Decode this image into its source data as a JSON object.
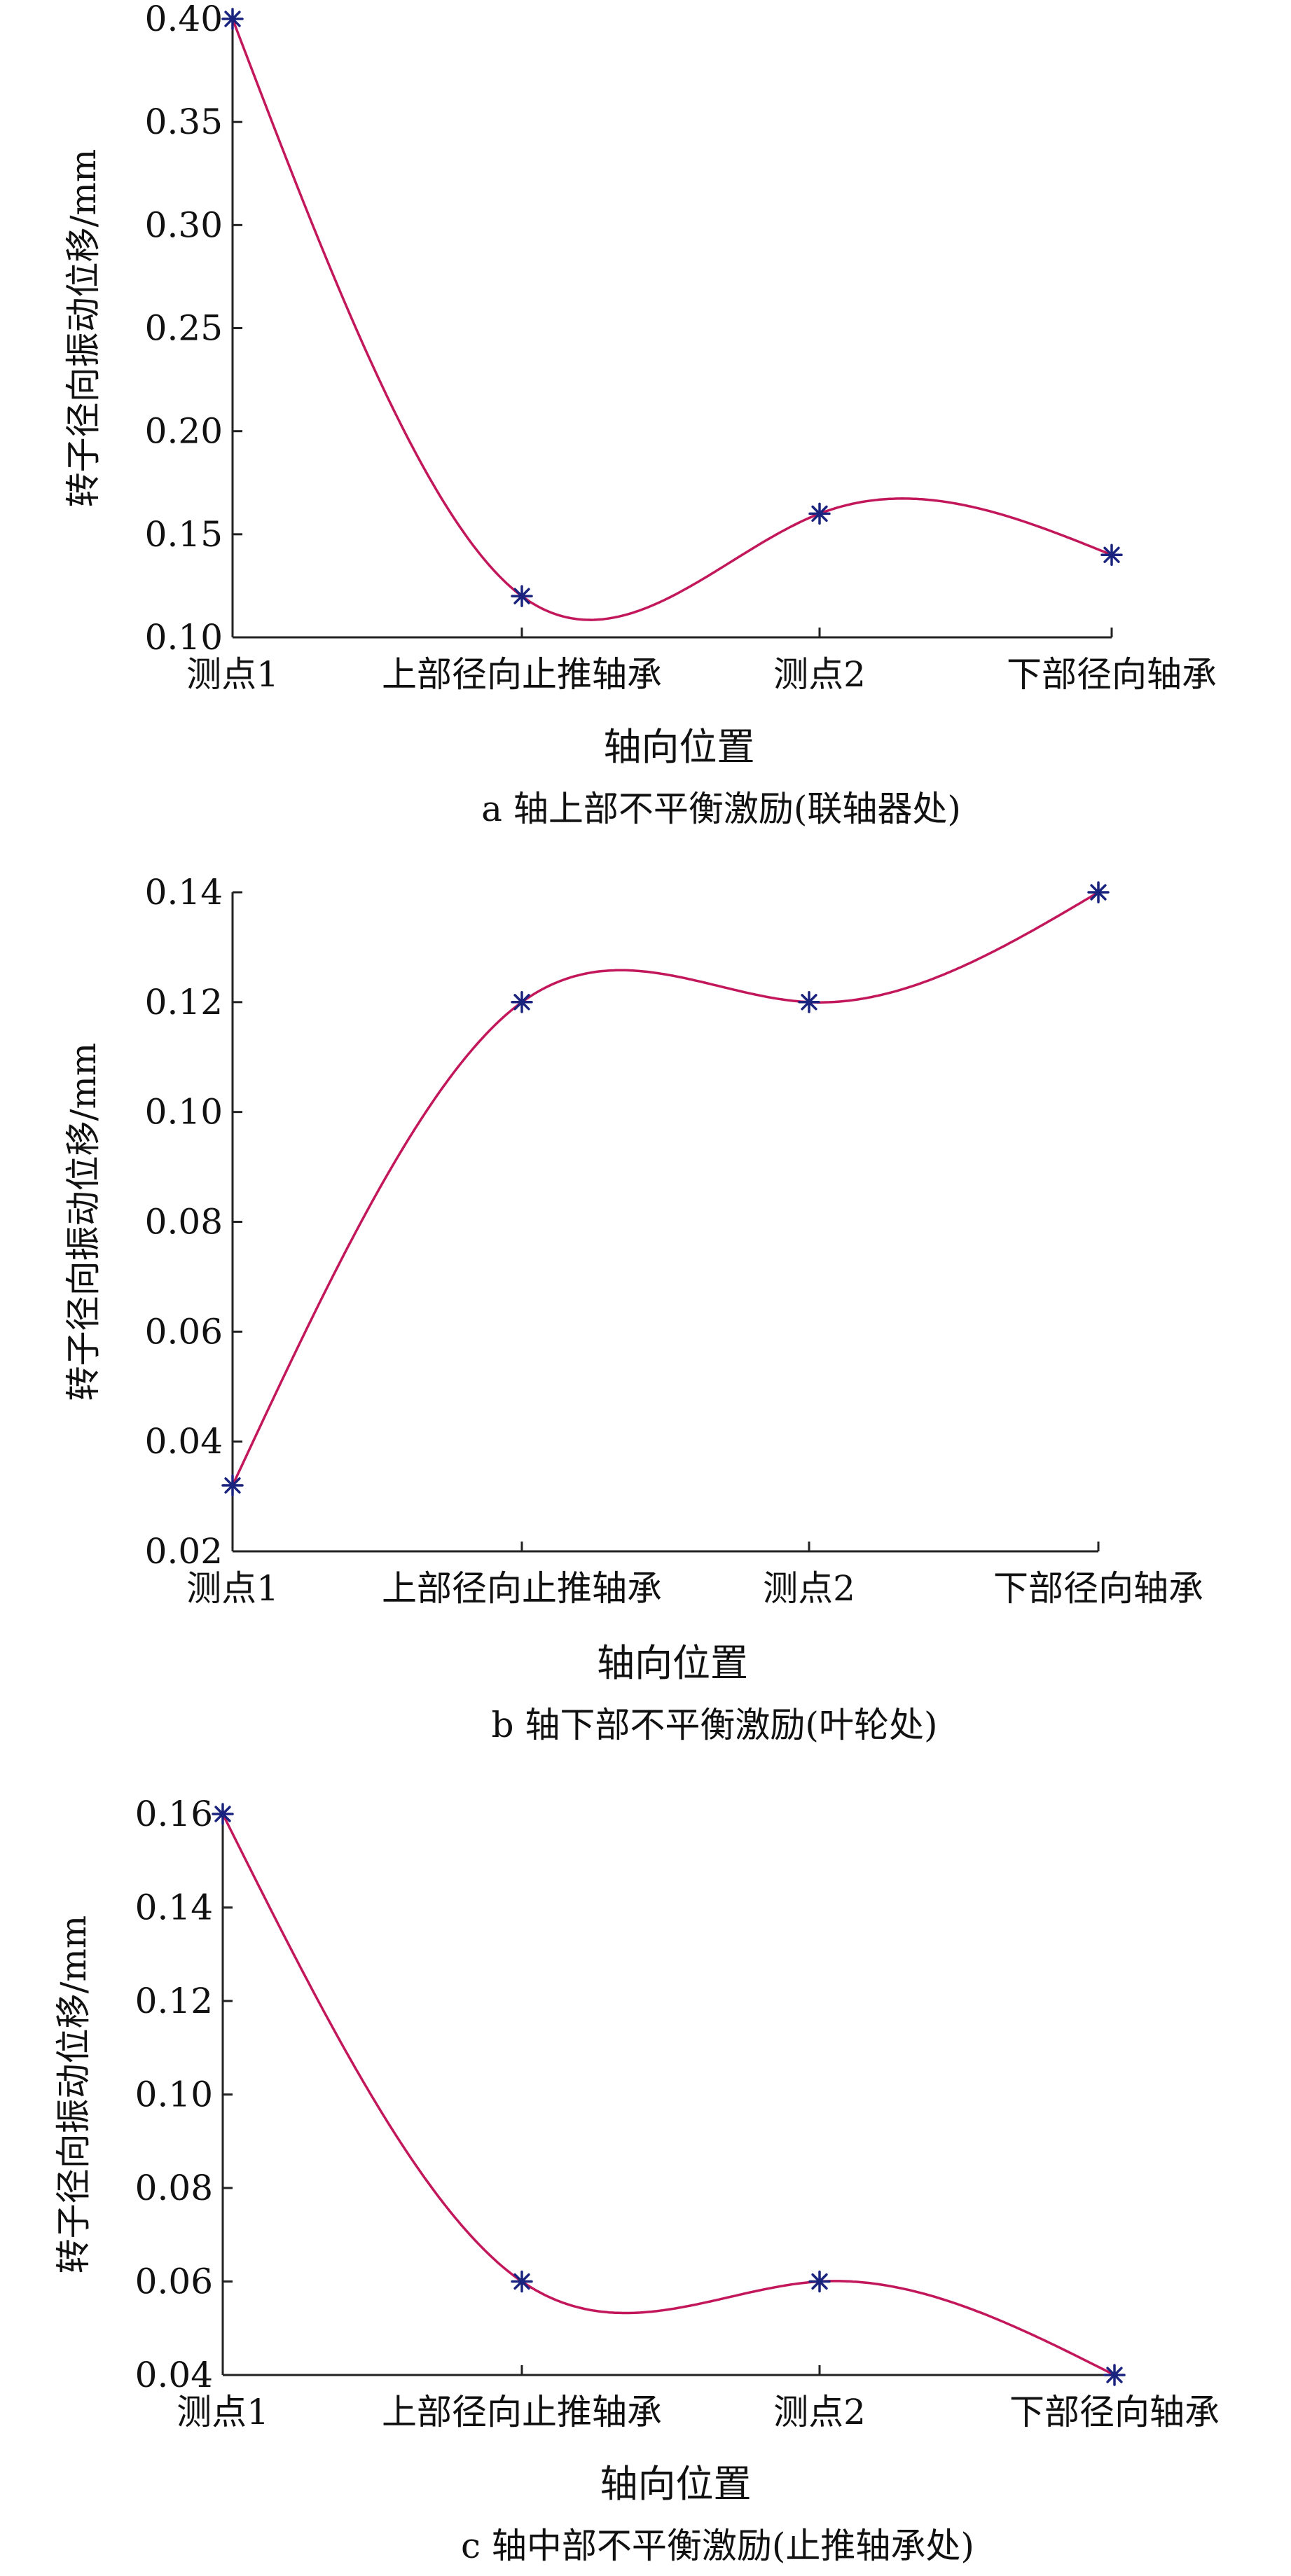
{
  "figure": {
    "panels": [
      {
        "caption": "a  轴上部不平衡激励(联轴器处)"
      },
      {
        "caption": "b  轴下部不平衡激励(叶轮处)"
      },
      {
        "caption": "c  轴中部不平衡激励(止推轴承处)"
      }
    ]
  },
  "colors": {
    "curve": "#c2185b",
    "marker": "#1a237e",
    "axis": "#222222",
    "text": "#111111"
  },
  "chart_data": [
    {
      "type": "line",
      "title": "",
      "xlabel": "轴向位置",
      "ylabel": "转子径向振动位移/mm",
      "categories": [
        "测点1",
        "上部径向止推轴承",
        "测点2",
        "下部径向轴承"
      ],
      "values": [
        0.4,
        0.12,
        0.16,
        0.14
      ],
      "ylim": [
        0.1,
        0.4
      ],
      "yticks": [
        "0.10",
        "0.15",
        "0.20",
        "0.25",
        "0.30",
        "0.35",
        "0.40"
      ],
      "marker": "*",
      "smooth": true,
      "grid": false
    },
    {
      "type": "line",
      "title": "",
      "xlabel": "轴向位置",
      "ylabel": "转子径向振动位移/mm",
      "categories": [
        "测点1",
        "上部径向止推轴承",
        "测点2",
        "下部径向轴承"
      ],
      "values": [
        0.032,
        0.12,
        0.12,
        0.14
      ],
      "ylim": [
        0.02,
        0.14
      ],
      "yticks": [
        "0.02",
        "0.04",
        "0.06",
        "0.08",
        "0.10",
        "0.12",
        "0.14"
      ],
      "marker": "*",
      "smooth": true,
      "grid": false
    },
    {
      "type": "line",
      "title": "",
      "xlabel": "轴向位置",
      "ylabel": "转子径向振动位移/mm",
      "categories": [
        "测点1",
        "上部径向止推轴承",
        "测点2",
        "下部径向轴承"
      ],
      "values": [
        0.16,
        0.06,
        0.06,
        0.04
      ],
      "ylim": [
        0.04,
        0.16
      ],
      "yticks": [
        "0.04",
        "0.06",
        "0.08",
        "0.10",
        "0.12",
        "0.14",
        "0.16"
      ],
      "marker": "*",
      "smooth": true,
      "grid": false
    }
  ]
}
